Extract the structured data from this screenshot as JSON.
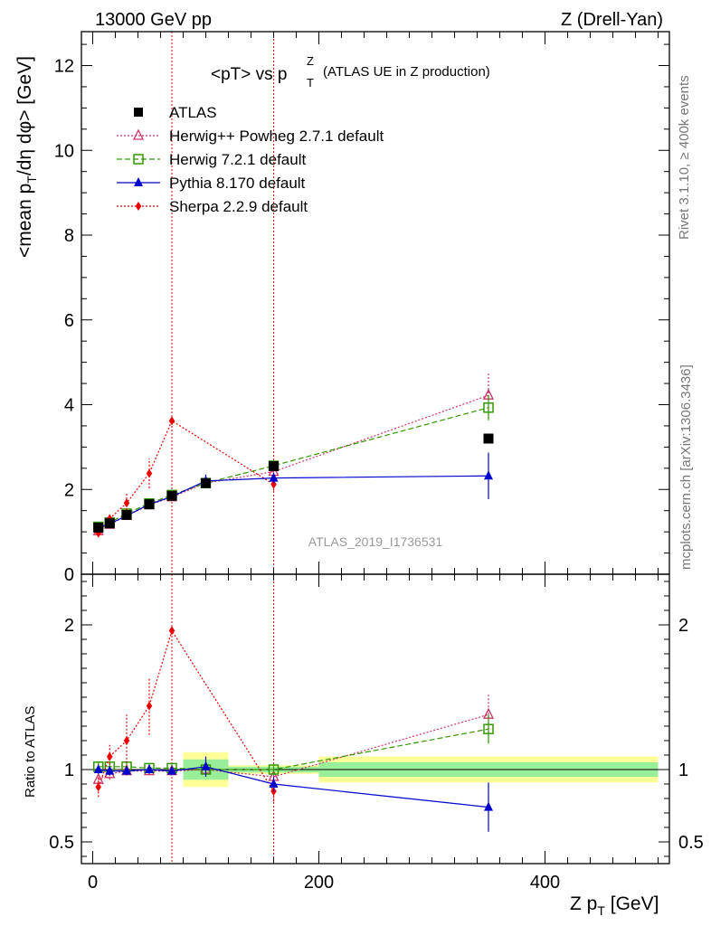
{
  "header": {
    "energy": "13000 GeV pp",
    "process": "Z (Drell-Yan)",
    "title_main": "<pT> vs p",
    "title_sup": "Z",
    "title_sub": "T",
    "title_rest": "(ATLAS UE in Z production)"
  },
  "side": {
    "rivet": "Rivet 3.1.10, ≥ 400k events",
    "mcplots": "mcplots.cern.ch [arXiv:1306.3436]"
  },
  "watermark": "ATLAS_2019_I1736531",
  "chart_data": [
    {
      "type": "line",
      "panel": "main",
      "ylabel": "<mean p_T/dη dφ> [GeV]",
      "ylim": [
        0,
        12.8
      ],
      "xlim": [
        -10,
        510
      ],
      "y_ticks": [
        "0",
        "2",
        "4",
        "6",
        "8",
        "10",
        "12"
      ],
      "vertical_lines_x": [
        70,
        160
      ],
      "series": [
        {
          "name": "ATLAS",
          "marker": "square",
          "color": "#000000",
          "x": [
            5,
            15,
            30,
            50,
            70,
            100,
            160,
            350
          ],
          "values": [
            1.1,
            1.2,
            1.4,
            1.65,
            1.85,
            2.15,
            2.55,
            3.2
          ],
          "errors": [
            0,
            0,
            0,
            0,
            0,
            0,
            0,
            0
          ]
        },
        {
          "name": "Herwig++ Powheg 2.7.1 default",
          "marker": "triangle-open",
          "line": "dotted",
          "color": "#cc3366",
          "x": [
            5,
            15,
            30,
            50,
            70,
            100,
            160,
            350
          ],
          "values": [
            1.02,
            1.17,
            1.38,
            1.63,
            1.82,
            2.15,
            2.42,
            4.22
          ],
          "errors": [
            0.05,
            0.05,
            0.05,
            0.06,
            0.08,
            0.1,
            0.12,
            0.55
          ]
        },
        {
          "name": "Herwig 7.2.1 default",
          "marker": "square-open",
          "line": "dashed",
          "color": "#339900",
          "x": [
            5,
            15,
            30,
            50,
            70,
            100,
            160,
            350
          ],
          "values": [
            1.12,
            1.22,
            1.43,
            1.67,
            1.87,
            2.15,
            2.56,
            3.93
          ],
          "errors": [
            0.04,
            0.04,
            0.05,
            0.05,
            0.06,
            0.08,
            0.1,
            0.3
          ]
        },
        {
          "name": "Pythia 8.170 default",
          "marker": "triangle",
          "line": "solid",
          "color": "#0000cc",
          "x": [
            5,
            15,
            30,
            50,
            70,
            100,
            160,
            350
          ],
          "values": [
            1.1,
            1.19,
            1.38,
            1.65,
            1.83,
            2.2,
            2.27,
            2.32
          ],
          "errors": [
            0.03,
            0.03,
            0.04,
            0.05,
            0.06,
            0.15,
            0.12,
            0.55
          ]
        },
        {
          "name": "Sherpa 2.2.9 default",
          "marker": "diamond",
          "line": "dotted",
          "color": "#ee0000",
          "x": [
            5,
            15,
            30,
            50,
            70,
            160
          ],
          "values": [
            0.97,
            1.31,
            1.68,
            2.38,
            3.62,
            2.12
          ],
          "errors": [
            0.1,
            0.1,
            0.25,
            0.35,
            0.0,
            0.15
          ]
        }
      ]
    },
    {
      "type": "line",
      "panel": "ratio",
      "ylabel": "Ratio to ATLAS",
      "xlabel": "Z p_T [GeV]",
      "ylim": [
        0.35,
        2.35
      ],
      "xlim": [
        -10,
        510
      ],
      "y_ticks": [
        "0.5",
        "1",
        "2"
      ],
      "x_ticks": [
        "0",
        "200",
        "400"
      ],
      "bands": [
        {
          "x": [
            80,
            120
          ],
          "inner": [
            0.93,
            1.07
          ],
          "outer": [
            0.88,
            1.12
          ]
        },
        {
          "x": [
            120,
            200
          ],
          "inner": [
            0.98,
            1.02
          ],
          "outer": [
            0.97,
            1.03
          ]
        },
        {
          "x": [
            200,
            500
          ],
          "inner": [
            0.95,
            1.05
          ],
          "outer": [
            0.91,
            1.09
          ]
        }
      ],
      "series": [
        {
          "name": "Herwig++ Powheg 2.7.1 default",
          "color": "#cc3366",
          "x": [
            5,
            15,
            30,
            50,
            70,
            100,
            160,
            350
          ],
          "values": [
            0.93,
            0.97,
            0.99,
            0.99,
            0.99,
            1.0,
            0.95,
            1.38
          ],
          "errors": [
            0.05,
            0.04,
            0.03,
            0.03,
            0.03,
            0.04,
            0.05,
            0.15
          ]
        },
        {
          "name": "Herwig 7.2.1 default",
          "color": "#339900",
          "x": [
            5,
            15,
            30,
            50,
            70,
            100,
            160,
            350
          ],
          "values": [
            1.02,
            1.02,
            1.02,
            1.01,
            1.01,
            1.0,
            1.0,
            1.28
          ],
          "errors": [
            0.03,
            0.03,
            0.03,
            0.03,
            0.03,
            0.03,
            0.04,
            0.1
          ]
        },
        {
          "name": "Pythia 8.170 default",
          "color": "#0000cc",
          "x": [
            5,
            15,
            30,
            50,
            70,
            100,
            160,
            350
          ],
          "values": [
            1.0,
            0.99,
            0.99,
            1.0,
            0.99,
            1.02,
            0.9,
            0.74
          ],
          "errors": [
            0.03,
            0.03,
            0.03,
            0.03,
            0.03,
            0.07,
            0.05,
            0.17
          ]
        },
        {
          "name": "Sherpa 2.2.9 default",
          "color": "#ee0000",
          "x": [
            5,
            15,
            30,
            50,
            70,
            160
          ],
          "values": [
            0.88,
            1.09,
            1.2,
            1.44,
            1.96,
            0.85
          ],
          "errors": [
            0.07,
            0.08,
            0.18,
            0.2,
            0.0,
            0.07
          ]
        }
      ]
    }
  ]
}
